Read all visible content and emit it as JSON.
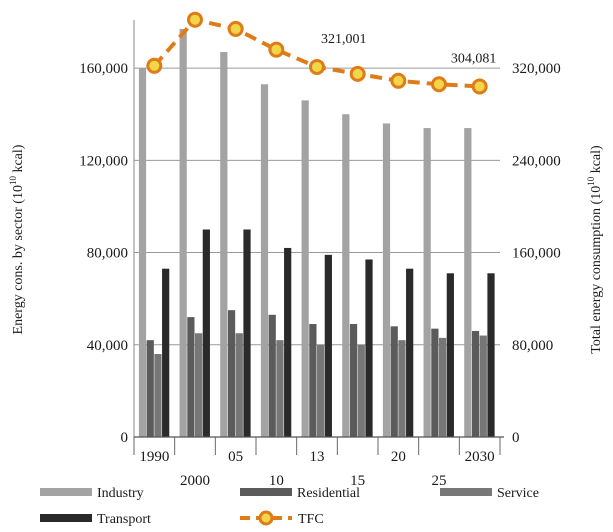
{
  "chart_data": {
    "type": "bar+line",
    "categories": [
      "1990",
      "2000",
      "05",
      "10",
      "13",
      "15",
      "20",
      "25",
      "2030"
    ],
    "series": [
      {
        "name": "Industry",
        "type": "bar",
        "axis": "left",
        "color": "#a3a3a3",
        "values": [
          160000,
          177000,
          167000,
          153000,
          146000,
          140000,
          136000,
          134000,
          134000
        ]
      },
      {
        "name": "Residential",
        "type": "bar",
        "axis": "left",
        "color": "#5b5b5b",
        "values": [
          42000,
          52000,
          55000,
          53000,
          49000,
          49000,
          48000,
          47000,
          46000
        ]
      },
      {
        "name": "Service",
        "type": "bar",
        "axis": "left",
        "color": "#777777",
        "values": [
          36000,
          45000,
          45000,
          42000,
          40000,
          40000,
          42000,
          43000,
          44000
        ]
      },
      {
        "name": "Transport",
        "type": "bar",
        "axis": "left",
        "color": "#2a2a2a",
        "values": [
          73000,
          90000,
          90000,
          82000,
          79000,
          77000,
          73000,
          71000,
          71000
        ]
      },
      {
        "name": "TFC",
        "type": "line",
        "axis": "right",
        "color": "#e07b1a",
        "marker_fill": "#f2d64a",
        "values": [
          322000,
          362000,
          354000,
          336000,
          321001,
          315000,
          309000,
          306000,
          304081
        ]
      }
    ],
    "left_axis": {
      "label_main": "Energy cons. by sector (10",
      "label_sup": "10",
      "label_end": " kcal)",
      "ylim": [
        0,
        180000
      ],
      "ticks": [
        0,
        40000,
        80000,
        120000,
        160000
      ],
      "tick_labels": [
        "0",
        "40,000",
        "80,000",
        "120,000",
        "160,000"
      ]
    },
    "right_axis": {
      "label_main": "Total energy consumption  (10",
      "label_sup": "10",
      "label_end": " kcal)",
      "ylim": [
        0,
        360000
      ],
      "ticks": [
        0,
        80000,
        160000,
        240000,
        320000
      ],
      "tick_labels": [
        "0",
        "80,000",
        "160,000",
        "240,000",
        "320,000"
      ]
    },
    "x_labels_upper": [
      "1990",
      "",
      "05",
      "",
      "13",
      "",
      "20",
      "",
      "2030"
    ],
    "x_labels_lower": [
      "",
      "2000",
      "",
      "10",
      "",
      "15",
      "",
      "25",
      ""
    ],
    "annotations": [
      {
        "category": "13",
        "text": "321,001"
      },
      {
        "category": "2030",
        "text": "304,081"
      }
    ],
    "grid": true,
    "legend_position": "bottom"
  }
}
